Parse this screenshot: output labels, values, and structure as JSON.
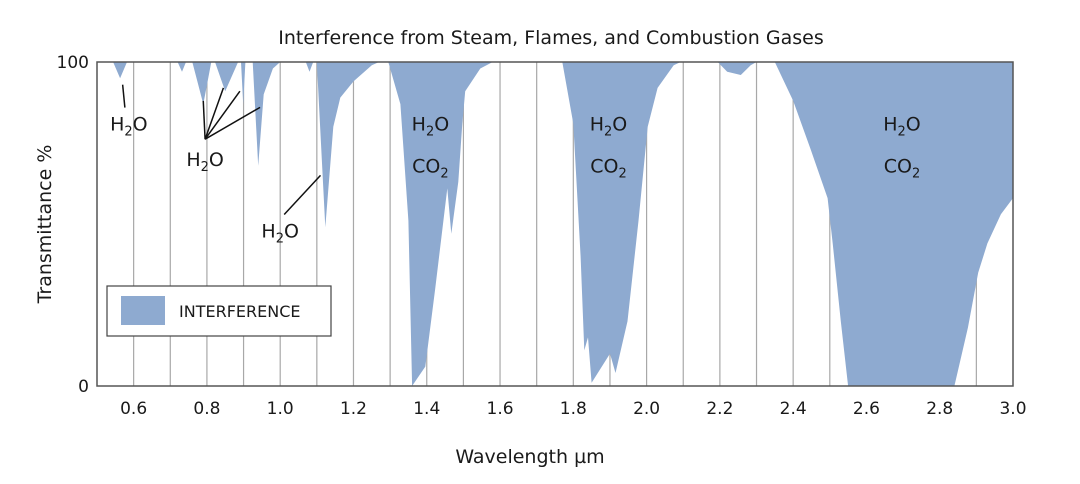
{
  "chart_data": {
    "type": "area",
    "title": "Interference from Steam, Flames, and Combustion Gases",
    "xlabel": "Wavelength µm",
    "ylabel": "Transmittance %",
    "xlim": [
      0.5,
      3.0
    ],
    "ylim": [
      0,
      100
    ],
    "x_ticks": [
      "0.6",
      "0.8",
      "1.0",
      "1.2",
      "1.4",
      "1.6",
      "1.8",
      "2.0",
      "2.2",
      "2.4",
      "2.6",
      "2.8",
      "3.0"
    ],
    "y_ticks": [
      "0",
      "100"
    ],
    "grid": "vertical lines every 0.1 µm",
    "fill_color": "#8eaad0",
    "legend": {
      "label": "INTERFERENCE",
      "placement": "lower-left"
    },
    "fill_note_series": "interference region filled from 100% down to transmittance curve",
    "transmittance": [
      [
        0.5,
        100
      ],
      [
        0.544,
        100
      ],
      [
        0.563,
        95
      ],
      [
        0.582,
        100
      ],
      [
        0.72,
        100
      ],
      [
        0.732,
        97
      ],
      [
        0.743,
        100
      ],
      [
        0.76,
        100
      ],
      [
        0.79,
        87
      ],
      [
        0.812,
        100
      ],
      [
        0.822,
        100
      ],
      [
        0.85,
        91
      ],
      [
        0.885,
        100
      ],
      [
        0.893,
        100
      ],
      [
        0.899,
        87
      ],
      [
        0.905,
        100
      ],
      [
        0.925,
        100
      ],
      [
        0.94,
        68
      ],
      [
        0.955,
        90
      ],
      [
        0.98,
        98
      ],
      [
        1.0,
        100
      ],
      [
        1.07,
        100
      ],
      [
        1.08,
        97
      ],
      [
        1.09,
        100
      ],
      [
        1.1,
        100
      ],
      [
        1.123,
        49
      ],
      [
        1.145,
        80
      ],
      [
        1.164,
        89
      ],
      [
        1.2,
        94
      ],
      [
        1.25,
        99
      ],
      [
        1.27,
        100
      ],
      [
        1.295,
        100
      ],
      [
        1.328,
        87
      ],
      [
        1.35,
        51
      ],
      [
        1.36,
        0
      ],
      [
        1.396,
        6
      ],
      [
        1.423,
        30
      ],
      [
        1.456,
        61
      ],
      [
        1.467,
        47
      ],
      [
        1.486,
        63
      ],
      [
        1.497,
        81
      ],
      [
        1.505,
        91
      ],
      [
        1.546,
        98
      ],
      [
        1.58,
        100
      ],
      [
        1.77,
        100
      ],
      [
        1.8,
        81
      ],
      [
        1.82,
        40
      ],
      [
        1.83,
        11
      ],
      [
        1.84,
        15
      ],
      [
        1.85,
        1
      ],
      [
        1.9,
        10
      ],
      [
        1.915,
        4
      ],
      [
        1.948,
        20
      ],
      [
        1.978,
        51
      ],
      [
        2.003,
        80
      ],
      [
        2.03,
        92
      ],
      [
        2.074,
        99
      ],
      [
        2.093,
        100
      ],
      [
        2.194,
        100
      ],
      [
        2.22,
        97
      ],
      [
        2.257,
        96
      ],
      [
        2.284,
        99
      ],
      [
        2.3,
        100
      ],
      [
        2.35,
        100
      ],
      [
        2.4,
        88
      ],
      [
        2.448,
        73
      ],
      [
        2.494,
        58
      ],
      [
        2.508,
        44
      ],
      [
        2.53,
        20
      ],
      [
        2.55,
        0
      ],
      [
        2.84,
        0
      ],
      [
        2.877,
        18
      ],
      [
        2.905,
        35
      ],
      [
        2.93,
        44
      ],
      [
        2.967,
        53
      ],
      [
        3.0,
        58
      ]
    ],
    "annotations": [
      {
        "lines": [
          "H2O"
        ],
        "x": 0.587,
        "y": 81,
        "targets": [
          [
            0.57,
            93
          ]
        ]
      },
      {
        "lines": [
          "H2O"
        ],
        "x": 0.795,
        "y": 70,
        "targets": [
          [
            0.79,
            88
          ],
          [
            0.845,
            92
          ],
          [
            0.89,
            91
          ],
          [
            0.945,
            86
          ]
        ]
      },
      {
        "lines": [
          "H2O"
        ],
        "x": 1.0,
        "y": 48,
        "targets": [
          [
            1.11,
            65
          ]
        ]
      },
      {
        "lines": [
          "H2O",
          "CO2"
        ],
        "x": 1.41,
        "y": 81
      },
      {
        "lines": [
          "H2O",
          "CO2"
        ],
        "x": 1.896,
        "y": 81
      },
      {
        "lines": [
          "H2O",
          "CO2"
        ],
        "x": 2.697,
        "y": 81
      }
    ]
  }
}
